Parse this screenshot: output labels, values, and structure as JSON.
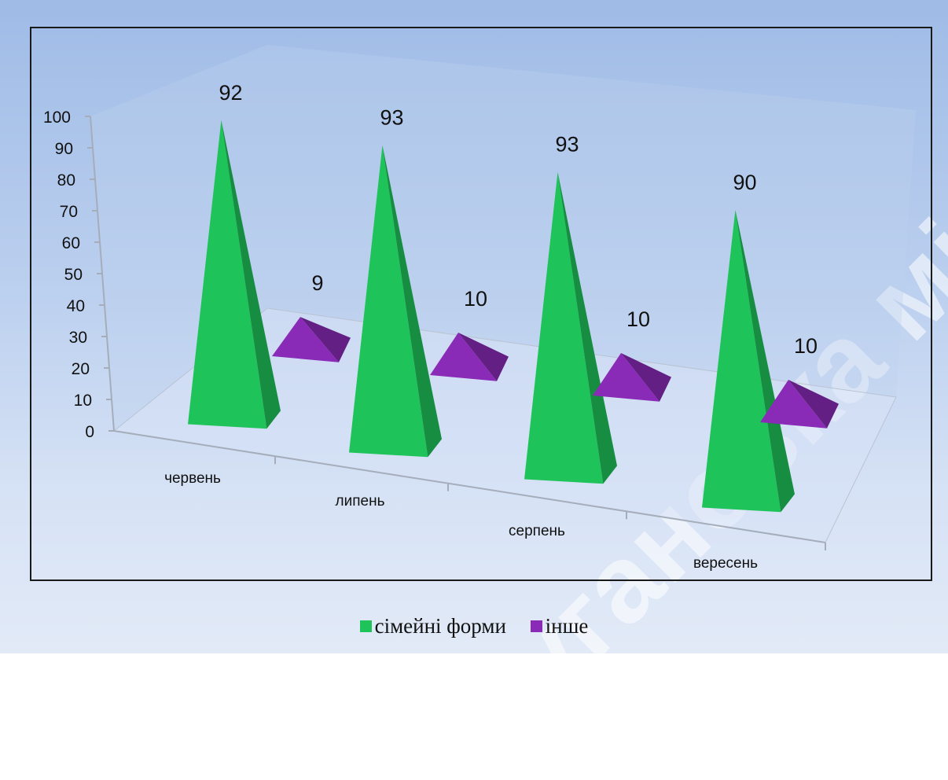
{
  "colors": {
    "series1": "#1ec45a",
    "series2": "#8a2bb8"
  },
  "watermark": "Луганська міська ВШ",
  "chart_data": {
    "type": "bar",
    "categories": [
      "червень",
      "липень",
      "серпень",
      "вересень"
    ],
    "series": [
      {
        "name": "сімейні форми",
        "values": [
          92,
          93,
          93,
          90
        ]
      },
      {
        "name": "інше",
        "values": [
          9,
          10,
          10,
          10
        ]
      }
    ],
    "ylim": [
      0,
      100
    ],
    "yticks": [
      "0",
      "10",
      "20",
      "30",
      "40",
      "50",
      "60",
      "70",
      "80",
      "90",
      "100"
    ],
    "legend_position": "bottom",
    "grid": false
  }
}
